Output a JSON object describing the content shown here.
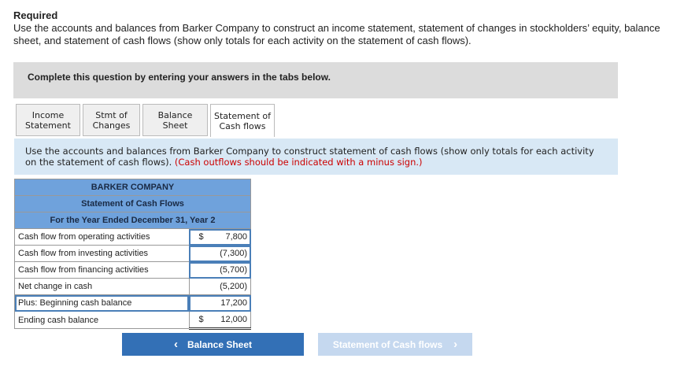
{
  "required_label": "Required",
  "required_text": "Use the accounts and balances from Barker Company to construct an income statement, statement of changes in stockholders’ equity, balance sheet, and statement of cash flows (show only totals for each activity on the statement of cash flows).",
  "banner": "Complete this question by entering your answers in the tabs below.",
  "tabs": [
    {
      "line1": "Income",
      "line2": "Statement"
    },
    {
      "line1": "Stmt of",
      "line2": "Changes"
    },
    {
      "line1": "Balance Sheet",
      "line2": ""
    },
    {
      "line1": "Statement of",
      "line2": "Cash flows"
    }
  ],
  "instruction": "Use the accounts and balances from Barker Company to construct statement of cash flows (show only totals for each activity on the statement of cash flows).",
  "instruction_note": "(Cash outflows should be indicated with a minus sign.)",
  "table": {
    "company": "BARKER COMPANY",
    "title": "Statement of Cash Flows",
    "period": "For the Year Ended December 31, Year 2",
    "rows": [
      {
        "label": "Cash flow from operating activities",
        "dollar": "$",
        "value": "7,800"
      },
      {
        "label": "Cash flow from investing activities",
        "dollar": "",
        "value": "(7,300)"
      },
      {
        "label": "Cash flow from financing activities",
        "dollar": "",
        "value": "(5,700)"
      },
      {
        "label": "Net change in cash",
        "dollar": "",
        "value": "(5,200)"
      },
      {
        "label": "Plus: Beginning cash balance",
        "dollar": "",
        "value": "17,200"
      },
      {
        "label": "Ending cash balance",
        "dollar": "$",
        "value": "12,000"
      }
    ]
  },
  "nav": {
    "prev": "Balance Sheet",
    "next": "Statement of Cash flows",
    "prev_icon": "‹",
    "next_icon": "›"
  }
}
